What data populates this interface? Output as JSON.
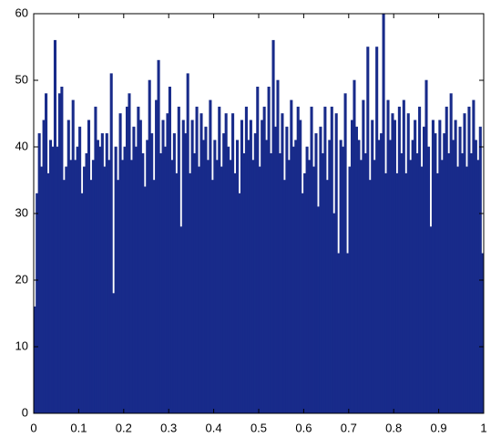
{
  "chart_data": {
    "type": "histogram",
    "color": "#182b8a",
    "bins": [
      0,
      0.005,
      0.01,
      0.015,
      0.02,
      0.025,
      0.03,
      0.035,
      0.04,
      0.045,
      0.05,
      0.055,
      0.06,
      0.065,
      0.07,
      0.075,
      0.08,
      0.085,
      0.09,
      0.095,
      0.1,
      0.105,
      0.11,
      0.115,
      0.12,
      0.125,
      0.13,
      0.135,
      0.14,
      0.145,
      0.15,
      0.155,
      0.16,
      0.165,
      0.17,
      0.175,
      0.18,
      0.185,
      0.19,
      0.195,
      0.2,
      0.205,
      0.21,
      0.215,
      0.22,
      0.225,
      0.23,
      0.235,
      0.24,
      0.245,
      0.25,
      0.255,
      0.26,
      0.265,
      0.27,
      0.275,
      0.28,
      0.285,
      0.29,
      0.295,
      0.3,
      0.305,
      0.31,
      0.315,
      0.32,
      0.325,
      0.33,
      0.335,
      0.34,
      0.345,
      0.35,
      0.355,
      0.36,
      0.365,
      0.37,
      0.375,
      0.38,
      0.385,
      0.39,
      0.395,
      0.4,
      0.405,
      0.41,
      0.415,
      0.42,
      0.425,
      0.43,
      0.435,
      0.44,
      0.445,
      0.45,
      0.455,
      0.46,
      0.465,
      0.47,
      0.475,
      0.48,
      0.485,
      0.49,
      0.495,
      0.5,
      0.505,
      0.51,
      0.515,
      0.52,
      0.525,
      0.53,
      0.535,
      0.54,
      0.545,
      0.55,
      0.555,
      0.56,
      0.565,
      0.57,
      0.575,
      0.58,
      0.585,
      0.59,
      0.595,
      0.6,
      0.605,
      0.61,
      0.615,
      0.62,
      0.625,
      0.63,
      0.635,
      0.64,
      0.645,
      0.65,
      0.655,
      0.66,
      0.665,
      0.67,
      0.675,
      0.68,
      0.685,
      0.69,
      0.695,
      0.7,
      0.705,
      0.71,
      0.715,
      0.72,
      0.725,
      0.73,
      0.735,
      0.74,
      0.745,
      0.75,
      0.755,
      0.76,
      0.765,
      0.77,
      0.775,
      0.78,
      0.785,
      0.79,
      0.795,
      0.8,
      0.805,
      0.81,
      0.815,
      0.82,
      0.825,
      0.83,
      0.835,
      0.84,
      0.845,
      0.85,
      0.855,
      0.86,
      0.865,
      0.87,
      0.875,
      0.88,
      0.885,
      0.89,
      0.895,
      0.9,
      0.905,
      0.91,
      0.915,
      0.92,
      0.925,
      0.93,
      0.935,
      0.94,
      0.945,
      0.95,
      0.955,
      0.96,
      0.965,
      0.97,
      0.975,
      0.98,
      0.985,
      0.99,
      0.995,
      1
    ],
    "values": [
      16,
      33,
      42,
      37,
      44,
      48,
      36,
      41,
      40,
      56,
      40,
      48,
      49,
      35,
      37,
      44,
      38,
      47,
      38,
      40,
      43,
      33,
      37,
      39,
      44,
      35,
      38,
      46,
      41,
      40,
      42,
      37,
      42,
      38,
      51,
      18,
      40,
      35,
      45,
      38,
      40,
      46,
      48,
      38,
      43,
      40,
      46,
      44,
      39,
      34,
      41,
      50,
      42,
      35,
      47,
      53,
      39,
      44,
      40,
      45,
      49,
      38,
      42,
      36,
      46,
      28,
      44,
      42,
      51,
      36,
      44,
      39,
      46,
      37,
      45,
      41,
      43,
      38,
      47,
      35,
      41,
      38,
      46,
      37,
      42,
      45,
      40,
      38,
      45,
      36,
      41,
      33,
      44,
      39,
      46,
      41,
      44,
      38,
      42,
      49,
      37,
      44,
      46,
      41,
      49,
      39,
      56,
      43,
      50,
      39,
      45,
      35,
      43,
      38,
      47,
      40,
      41,
      46,
      44,
      33,
      36,
      40,
      38,
      46,
      37,
      42,
      31,
      43,
      39,
      46,
      35,
      41,
      46,
      30,
      45,
      24,
      41,
      40,
      48,
      24,
      37,
      44,
      50,
      43,
      41,
      38,
      47,
      39,
      55,
      35,
      44,
      38,
      55,
      41,
      42,
      60,
      36,
      47,
      41,
      45,
      44,
      36,
      46,
      39,
      47,
      36,
      45,
      38,
      41,
      44,
      39,
      46,
      37,
      43,
      50,
      40,
      28,
      44,
      42,
      36,
      44,
      38,
      42,
      46,
      39,
      48,
      41,
      44,
      37,
      43,
      39,
      45,
      37,
      46,
      39,
      47,
      41,
      38,
      43,
      24
    ],
    "xlim": [
      0,
      1
    ],
    "xticks": [
      0,
      0.1,
      0.2,
      0.3,
      0.4,
      0.5,
      0.6,
      0.7,
      0.8,
      0.9,
      1
    ],
    "ylim": [
      0,
      60
    ],
    "yticks": [
      0,
      10,
      20,
      30,
      40,
      50,
      60
    ]
  }
}
